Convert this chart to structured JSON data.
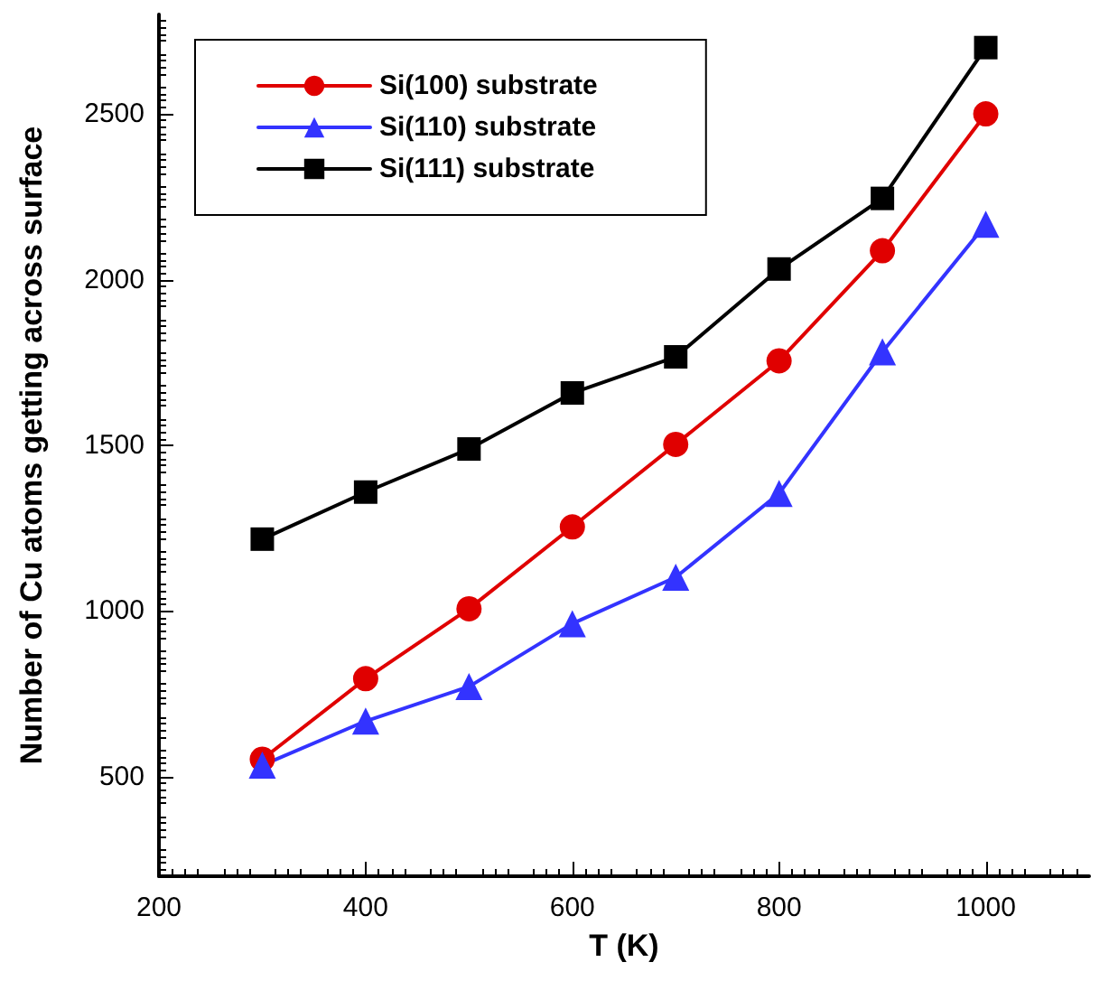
{
  "chart_data": {
    "type": "line",
    "xlabel": "T (K)",
    "ylabel": "Number of Cu atoms getting across surface",
    "x": [
      300,
      400,
      500,
      600,
      700,
      800,
      900,
      1000
    ],
    "series": [
      {
        "name": "Si(100) substrate",
        "color": "#e00000",
        "marker": "circle",
        "values": [
          553,
          796,
          1007,
          1254,
          1503,
          1755,
          2087,
          2500
        ]
      },
      {
        "name": "Si(110) substrate",
        "color": "#3333ff",
        "marker": "triangle",
        "values": [
          535,
          668,
          772,
          962,
          1102,
          1355,
          1782,
          2167
        ]
      },
      {
        "name": "Si(111) substrate",
        "color": "#000000",
        "marker": "square",
        "values": [
          1217,
          1359,
          1489,
          1658,
          1767,
          2032,
          2245,
          2700
        ]
      }
    ],
    "xlim": [
      200,
      1100
    ],
    "xticks": [
      200,
      400,
      600,
      800,
      1000
    ],
    "ylim": [
      200,
      2800
    ],
    "yticks": [
      500,
      1000,
      1500,
      2000,
      2500
    ],
    "grid": false,
    "legend": "top left",
    "line_style": "solid"
  }
}
